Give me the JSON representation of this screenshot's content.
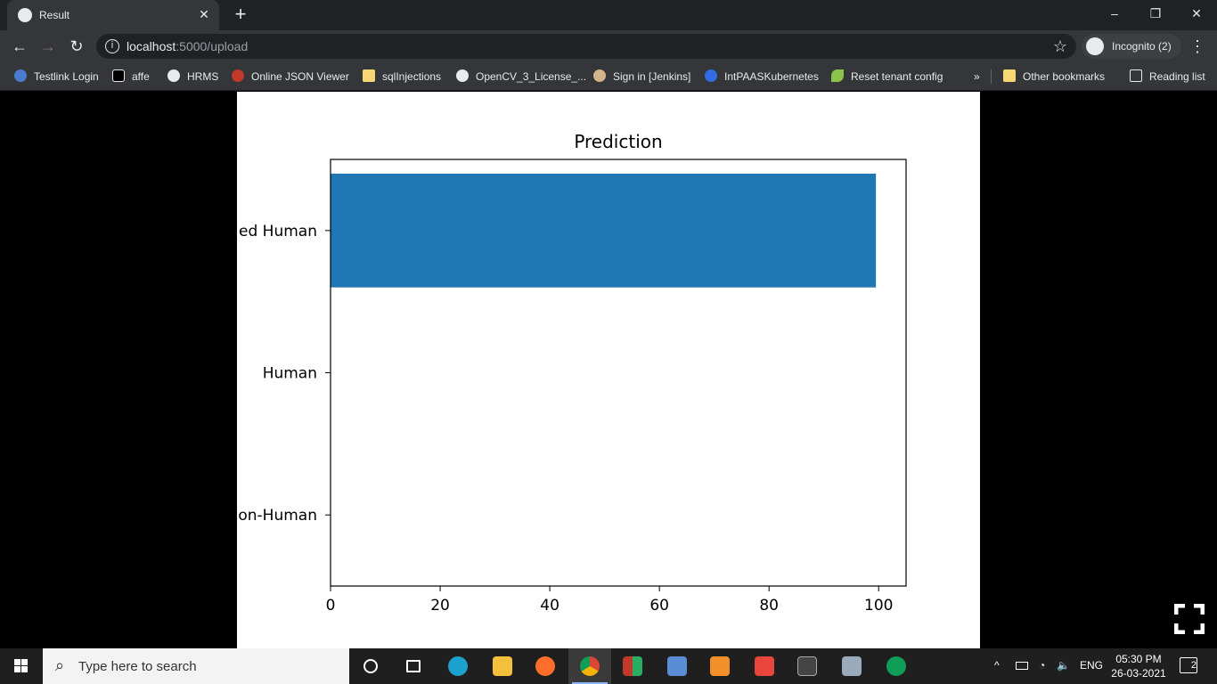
{
  "browser": {
    "tab_title": "Result",
    "tab_close": "✕",
    "new_tab": "+",
    "window": {
      "minimize": "–",
      "restore": "❐",
      "close": "✕"
    },
    "url_host": "localhost",
    "url_path": ":5000/upload",
    "profile_label": "Incognito (2)",
    "bookmarks": [
      {
        "label": "Testlink Login",
        "icon": "testlink-icon",
        "color": "#4a7bd0"
      },
      {
        "label": "affe",
        "icon": "ff-icon",
        "color": "#000000"
      },
      {
        "label": "HRMS",
        "icon": "globe-icon",
        "color": "#e8eaed"
      },
      {
        "label": "Online JSON Viewer",
        "icon": "json-viewer-icon",
        "color": "#c0392b"
      },
      {
        "label": "sqlInjections",
        "icon": "folder-icon",
        "color": "#f7d774"
      },
      {
        "label": "OpenCV_3_License_...",
        "icon": "github-icon",
        "color": "#e8eaed"
      },
      {
        "label": "Sign in [Jenkins]",
        "icon": "jenkins-icon",
        "color": "#d4b48c"
      },
      {
        "label": "IntPAASKubernetes",
        "icon": "kubernetes-icon",
        "color": "#326ce5"
      },
      {
        "label": "Reset tenant config",
        "icon": "leaf-icon",
        "color": "#8bc34a"
      }
    ],
    "bookmarks_overflow": "»",
    "other_bookmarks": "Other bookmarks",
    "reading_list": "Reading list"
  },
  "chart_data": {
    "type": "bar",
    "orientation": "horizontal",
    "title": "Prediction",
    "categories": [
      "Non-Human",
      "Human",
      "Modified Human"
    ],
    "visible_category_labels": [
      "on-Human",
      "Human",
      "ed Human"
    ],
    "values": [
      0,
      0,
      99.5
    ],
    "xlim": [
      0,
      105
    ],
    "xticks": [
      0,
      20,
      40,
      60,
      80,
      100
    ],
    "bar_color": "#1f77b4",
    "xlabel": "",
    "ylabel": "",
    "grid": false
  },
  "taskbar": {
    "search_placeholder": "Type here to search",
    "language": "ENG",
    "time": "05:30 PM",
    "date": "26-03-2021",
    "notifications": "2"
  }
}
